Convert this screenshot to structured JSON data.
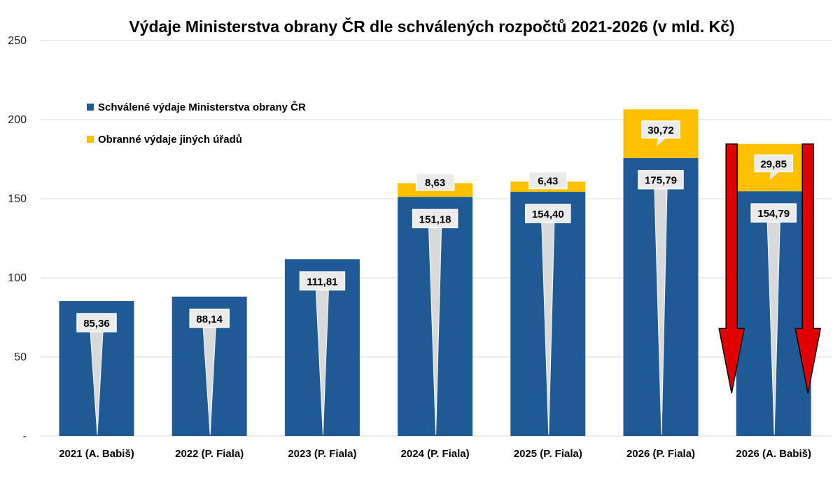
{
  "chart_data": {
    "type": "bar",
    "stacked": true,
    "title": "Výdaje Ministerstva obrany ČR dle schválených rozpočtů 2021-2026 (v mld. Kč)",
    "categories": [
      "2021 (A. Babiš)",
      "2022 (P. Fiala)",
      "2023 (P. Fiala)",
      "2024 (P. Fiala)",
      "2025 (P. Fiala)",
      "2026 (P. Fiala)",
      "2026 (A. Babiš)"
    ],
    "series": [
      {
        "name": "Schválené výdaje Ministerstva obrany ČR",
        "color": "#1f5a96",
        "values": [
          85.36,
          88.14,
          111.81,
          151.18,
          154.4,
          175.79,
          154.79
        ],
        "labels": [
          "85,36",
          "88,14",
          "111,81",
          "151,18",
          "154,40",
          "175,79",
          "154,79"
        ]
      },
      {
        "name": "Obranné výdaje jiných úřadů",
        "color": "#ffc000",
        "values": [
          null,
          null,
          null,
          8.63,
          6.43,
          30.72,
          29.85
        ],
        "labels": [
          null,
          null,
          null,
          "8,63",
          "6,43",
          "30,72",
          "29,85"
        ]
      }
    ],
    "yticks": [
      "-",
      "50",
      "100",
      "150",
      "200",
      "250"
    ],
    "ylim": [
      0,
      250
    ],
    "grid": true,
    "legend": "top-left",
    "annotation": "two red downward arrows beside the last bar",
    "arrow_color": "#e00000"
  }
}
